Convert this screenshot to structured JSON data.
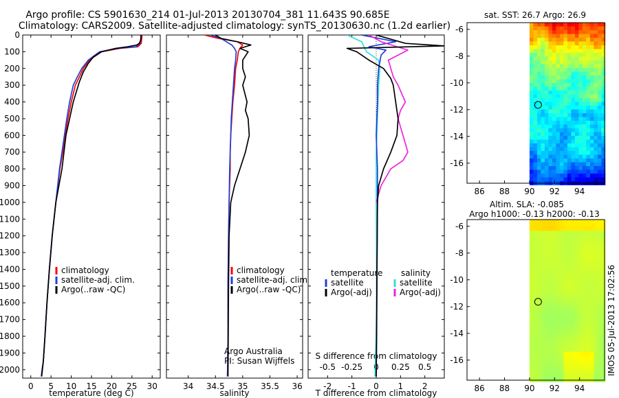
{
  "header": {
    "line1": "Argo profile: CS 5901630_214 01-Jul-2013 20130704_381 11.643S 90.685E",
    "line2": "Climatology: CARS2009. Satellite-adjusted climatology: synTS_20130630.nc (1.2d earlier)"
  },
  "colors": {
    "clim": "#ff0000",
    "sat": "#1f3fd8",
    "argo": "#000000",
    "sal_sat": "#33dddd",
    "sal_argo": "#ee22dd",
    "axis": "#000000"
  },
  "chart_data": [
    {
      "id": "temperature",
      "type": "line",
      "title": "",
      "xlabel": "temperature (deg C)",
      "ylabel": "",
      "xlim": [
        -2,
        32
      ],
      "ylim": [
        2050,
        0
      ],
      "xticks": [
        0,
        5,
        10,
        15,
        20,
        25,
        30
      ],
      "yticks": [
        0,
        100,
        200,
        300,
        400,
        500,
        600,
        700,
        800,
        900,
        1000,
        1100,
        1200,
        1300,
        1400,
        1500,
        1600,
        1700,
        1800,
        1900,
        2000
      ],
      "legend": [
        "climatology",
        "satellite-adj. clim.",
        "Argo(..raw -QC)"
      ],
      "series": [
        {
          "name": "climatology",
          "color_key": "clim",
          "x": [
            27.5,
            27.3,
            26.5,
            22.0,
            17.5,
            14.5,
            13.0,
            12.0,
            11.0,
            10.0,
            9.2,
            8.5,
            7.9,
            7.2,
            6.2,
            5.3,
            4.6,
            4.0,
            3.5,
            3.1,
            2.8,
            2.6
          ],
          "y": [
            0,
            50,
            70,
            80,
            100,
            150,
            200,
            250,
            300,
            400,
            500,
            600,
            700,
            800,
            1000,
            1200,
            1400,
            1600,
            1800,
            1950,
            2000,
            2040
          ]
        },
        {
          "name": "satellite-adj. clim.",
          "color_key": "sat",
          "x": [
            27.3,
            27.0,
            26.0,
            21.5,
            17.0,
            14.2,
            12.6,
            11.5,
            10.5,
            9.6,
            8.9,
            8.3,
            7.7,
            7.1,
            6.2,
            5.3,
            4.6,
            4.0,
            3.5,
            3.1,
            2.8,
            2.6
          ],
          "y": [
            0,
            50,
            70,
            80,
            100,
            150,
            200,
            250,
            300,
            400,
            500,
            600,
            700,
            800,
            1000,
            1200,
            1400,
            1600,
            1800,
            1950,
            2000,
            2040
          ]
        },
        {
          "name": "Argo(..raw -QC)",
          "color_key": "argo",
          "x": [
            27.2,
            27.2,
            26.8,
            26.2,
            24.0,
            21.0,
            17.5,
            15.5,
            14.2,
            13.0,
            12.0,
            10.5,
            9.6,
            8.7,
            7.7,
            6.2,
            5.3,
            4.6,
            4.0,
            3.5,
            3.1,
            2.7
          ],
          "y": [
            0,
            30,
            50,
            60,
            70,
            80,
            100,
            130,
            170,
            220,
            280,
            400,
            500,
            600,
            800,
            1000,
            1200,
            1400,
            1600,
            1800,
            1950,
            2040
          ]
        }
      ]
    },
    {
      "id": "salinity",
      "type": "line",
      "title": "",
      "xlabel": "salinity",
      "ylabel": "",
      "xlim": [
        33.6,
        36.1
      ],
      "ylim": [
        2050,
        0
      ],
      "xticks": [
        34,
        34.5,
        35,
        35.5,
        36
      ],
      "yticks": [
        0,
        100,
        200,
        300,
        400,
        500,
        600,
        700,
        800,
        900,
        1000,
        1100,
        1200,
        1300,
        1400,
        1500,
        1600,
        1700,
        1800,
        1900,
        2000
      ],
      "legend": [
        "climatology",
        "satellite-adj. clim.",
        "Argo(..raw -QC)"
      ],
      "annotation": [
        "Argo Australia",
        "PI: Susan Wijffels"
      ],
      "series": [
        {
          "name": "climatology",
          "color_key": "clim",
          "x": [
            34.3,
            34.55,
            34.9,
            35.0,
            34.95,
            34.92,
            34.9,
            34.87,
            34.85,
            34.82,
            34.8,
            34.78,
            34.77,
            34.77,
            34.75,
            34.74,
            34.73,
            34.73,
            34.72
          ],
          "y": [
            0,
            20,
            40,
            60,
            80,
            100,
            150,
            200,
            300,
            400,
            500,
            600,
            700,
            800,
            1000,
            1200,
            1500,
            1800,
            2040
          ]
        },
        {
          "name": "satellite-adj. clim.",
          "color_key": "sat",
          "x": [
            34.4,
            34.6,
            34.7,
            34.8,
            34.85,
            34.88,
            34.87,
            34.85,
            34.83,
            34.81,
            34.79,
            34.78,
            34.77,
            34.76,
            34.75,
            34.74,
            34.73,
            34.73,
            34.72
          ],
          "y": [
            0,
            20,
            40,
            60,
            80,
            100,
            150,
            200,
            300,
            400,
            500,
            600,
            700,
            800,
            1000,
            1200,
            1500,
            1800,
            2040
          ]
        },
        {
          "name": "Argo(..raw -QC)",
          "color_key": "argo",
          "x": [
            34.5,
            34.6,
            34.9,
            35.15,
            34.95,
            35.1,
            35.0,
            35.0,
            35.05,
            35.0,
            35.08,
            35.05,
            35.1,
            35.12,
            35.05,
            34.95,
            34.85,
            34.78,
            34.75,
            34.74,
            34.73
          ],
          "y": [
            0,
            20,
            40,
            60,
            80,
            100,
            150,
            200,
            250,
            300,
            400,
            450,
            500,
            600,
            700,
            800,
            900,
            1000,
            1200,
            1500,
            2040
          ]
        }
      ]
    },
    {
      "id": "difference",
      "type": "line",
      "title": "S difference from climatology",
      "xlabel": "T difference from climatology",
      "ylabel": "",
      "xlim": [
        -2.8,
        2.8
      ],
      "ylim": [
        2050,
        0
      ],
      "xticks": [
        -2,
        -1,
        0,
        1,
        2
      ],
      "top_ticks": [
        "-0.5",
        "-0.25",
        "0",
        "0.25",
        "0.5"
      ],
      "top_ticks_at": [
        -2,
        -1,
        0,
        1,
        2
      ],
      "yticks": [
        0,
        100,
        200,
        300,
        400,
        500,
        600,
        700,
        800,
        900,
        1000,
        1100,
        1200,
        1300,
        1400,
        1500,
        1600,
        1700,
        1800,
        1900,
        2000
      ],
      "legend_headers": [
        "temperature",
        "salinity"
      ],
      "legend": [
        "satellite",
        "Argo(-adj)",
        "satellite",
        "Argo(-adj)"
      ],
      "series": [
        {
          "name": "T satellite",
          "color_key": "sat",
          "x": [
            -0.6,
            0.8,
            -0.3,
            0.4,
            0.2,
            0.1,
            0.05,
            0.05,
            0.0,
            0.05,
            0.05,
            0.03,
            0.02,
            0.0
          ],
          "y": [
            0,
            40,
            70,
            90,
            120,
            200,
            300,
            400,
            600,
            800,
            1000,
            1400,
            1800,
            2040
          ]
        },
        {
          "name": "T Argo(-adj)",
          "color_key": "argo",
          "x": [
            0.0,
            1.2,
            2.8,
            -1.2,
            -0.8,
            -0.3,
            0.3,
            0.6,
            0.7,
            0.8,
            0.9,
            0.85,
            0.6,
            0.3,
            0.1,
            0.05,
            0.0
          ],
          "y": [
            0,
            50,
            65,
            80,
            100,
            150,
            200,
            260,
            300,
            400,
            500,
            600,
            700,
            800,
            900,
            1000,
            2040
          ]
        },
        {
          "name": "S satellite",
          "color_key": "sal_sat",
          "x": [
            -1.2,
            -0.6,
            -0.5,
            -0.4,
            0.1,
            0.15,
            0.1,
            0.05,
            0.0,
            0.0,
            0.02,
            0.0,
            -0.05
          ],
          "y": [
            0,
            40,
            70,
            100,
            150,
            200,
            300,
            500,
            700,
            1000,
            1500,
            1800,
            2040
          ]
        },
        {
          "name": "S Argo(-adj)",
          "color_key": "sal_argo",
          "x": [
            -0.3,
            0.2,
            1.3,
            0.5,
            0.6,
            0.7,
            0.9,
            1.2,
            1.0,
            0.9,
            1.1,
            1.3,
            1.1,
            0.6,
            0.2,
            0.0
          ],
          "y": [
            0,
            40,
            90,
            150,
            200,
            250,
            300,
            400,
            450,
            500,
            600,
            700,
            750,
            800,
            900,
            1000
          ]
        }
      ]
    },
    {
      "id": "sst_map",
      "type": "heatmap",
      "title": "sat. SST: 26.7  Argo: 26.9",
      "xlim": [
        85,
        96
      ],
      "ylim": [
        -17.5,
        -5.5
      ],
      "xticks": [
        86,
        88,
        90,
        92,
        94
      ],
      "yticks": [
        -6,
        -8,
        -10,
        -12,
        -14,
        -16
      ],
      "data_lon_min": 90,
      "marker": {
        "lon": 90.685,
        "lat": -11.643
      }
    },
    {
      "id": "sla_map",
      "type": "heatmap",
      "title": "Altim. SLA: -0.085",
      "subtitle": "Argo h1000: -0.13  h2000: -0.13",
      "xlim": [
        85,
        96
      ],
      "ylim": [
        -17.5,
        -5.5
      ],
      "xticks": [
        86,
        88,
        90,
        92,
        94
      ],
      "yticks": [
        -6,
        -8,
        -10,
        -12,
        -14,
        -16
      ],
      "data_lon_min": 90,
      "marker": {
        "lon": 90.685,
        "lat": -11.643
      }
    }
  ],
  "footer": {
    "stamp": "IMOS 05-Jul-2013 17:02:56"
  }
}
